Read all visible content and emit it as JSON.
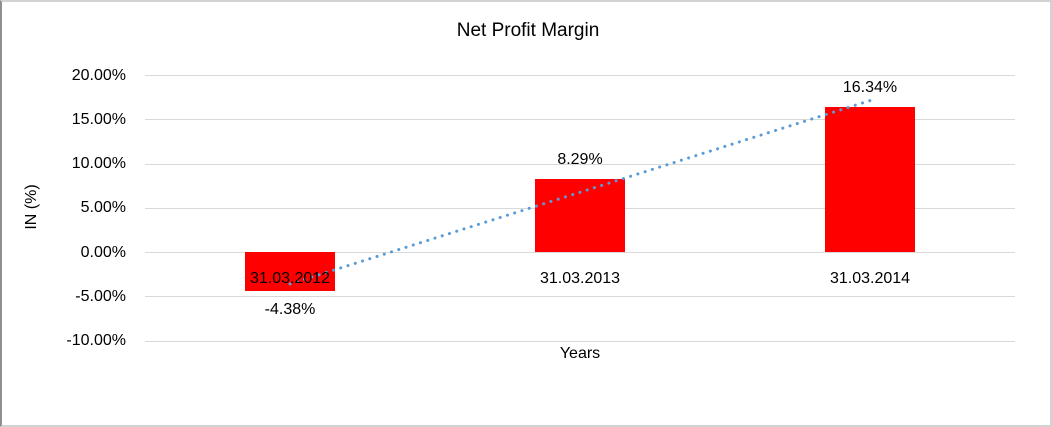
{
  "chart_data": {
    "type": "bar",
    "title": "Net Profit Margin",
    "xlabel": "Years",
    "ylabel": "IN (%)",
    "categories": [
      "31.03.2012",
      "31.03.2013",
      "31.03.2014"
    ],
    "values": [
      -4.38,
      8.29,
      16.34
    ],
    "data_labels": [
      "-4.38%",
      "8.29%",
      "16.34%"
    ],
    "ylim": [
      -10,
      20
    ],
    "ytick_step": 5,
    "ytick_labels": [
      "20.00%",
      "15.00%",
      "10.00%",
      "5.00%",
      "0.00%",
      "-5.00%",
      "-10.00%"
    ],
    "grid": true,
    "legend": "none",
    "bar_color": "#ff0000",
    "gridline_color": "#d9d9d9",
    "trendline": {
      "type": "linear",
      "style": "dotted",
      "color": "#5b9bd5",
      "fit_values": [
        -3.61,
        6.75,
        17.11
      ]
    }
  }
}
